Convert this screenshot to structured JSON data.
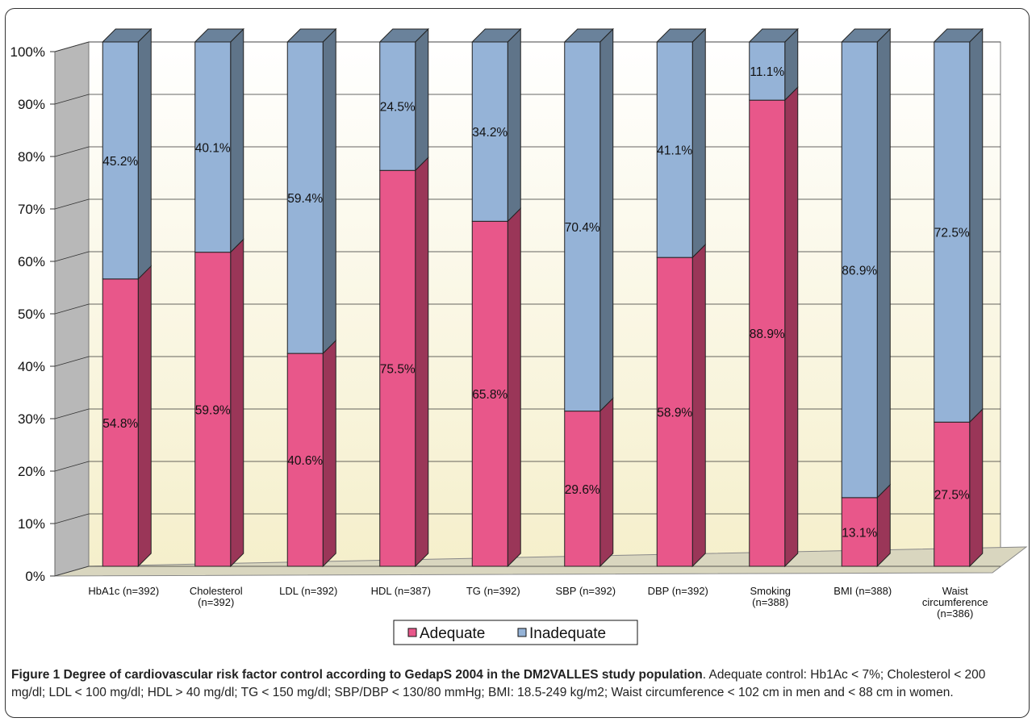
{
  "figure": {
    "label": "Figure 1",
    "title": "Degree of cardiovascular risk factor control according to GedapS 2004 in the DM2VALLES study population",
    "description": ". Adequate control: Hb1Ac < 7%; Cholesterol < 200 mg/dl; LDL < 100 mg/dl; HDL > 40 mg/dl; TG < 150 mg/dl; SBP/DBP < 130/80 mmHg; BMI: 18.5-249 kg/m2; Waist circumference < 102 cm in men and < 88 cm in women."
  },
  "chart_data": {
    "type": "bar",
    "stacked": true,
    "three_d": true,
    "categories": [
      [
        "HbA1c (n=392)"
      ],
      [
        "Cholesterol",
        "(n=392)"
      ],
      [
        "LDL (n=392)"
      ],
      [
        "HDL (n=387)"
      ],
      [
        "TG (n=392)"
      ],
      [
        "SBP (n=392)"
      ],
      [
        "DBP (n=392)"
      ],
      [
        "Smoking",
        "(n=388)"
      ],
      [
        "BMI (n=388)"
      ],
      [
        "Waist",
        "circumference",
        "(n=386)"
      ]
    ],
    "series": [
      {
        "name": "Adequate",
        "values": [
          54.8,
          59.9,
          40.6,
          75.5,
          65.8,
          29.6,
          58.9,
          88.9,
          13.1,
          27.5
        ],
        "labels": [
          "54.8%",
          "59.9%",
          "40.6%",
          "75.5%",
          "65.8%",
          "29.6%",
          "58.9%",
          "88.9%",
          "13.1%",
          "27.5%"
        ],
        "color": "#e8578a"
      },
      {
        "name": "Inadequate",
        "values": [
          45.2,
          40.1,
          59.4,
          24.5,
          34.2,
          70.4,
          41.1,
          11.1,
          86.9,
          72.5
        ],
        "labels": [
          "45.2%",
          "40.1%",
          "59.4%",
          "24.5%",
          "34.2%",
          "70.4%",
          "41.1%",
          "11.1%",
          "86.9%",
          "72.5%"
        ],
        "color": "#95b3d7"
      }
    ],
    "ylim": [
      0,
      100
    ],
    "yticks": [
      "0%",
      "10%",
      "20%",
      "30%",
      "40%",
      "50%",
      "60%",
      "70%",
      "80%",
      "90%",
      "100%"
    ],
    "grid": true,
    "legend": "bottom"
  }
}
